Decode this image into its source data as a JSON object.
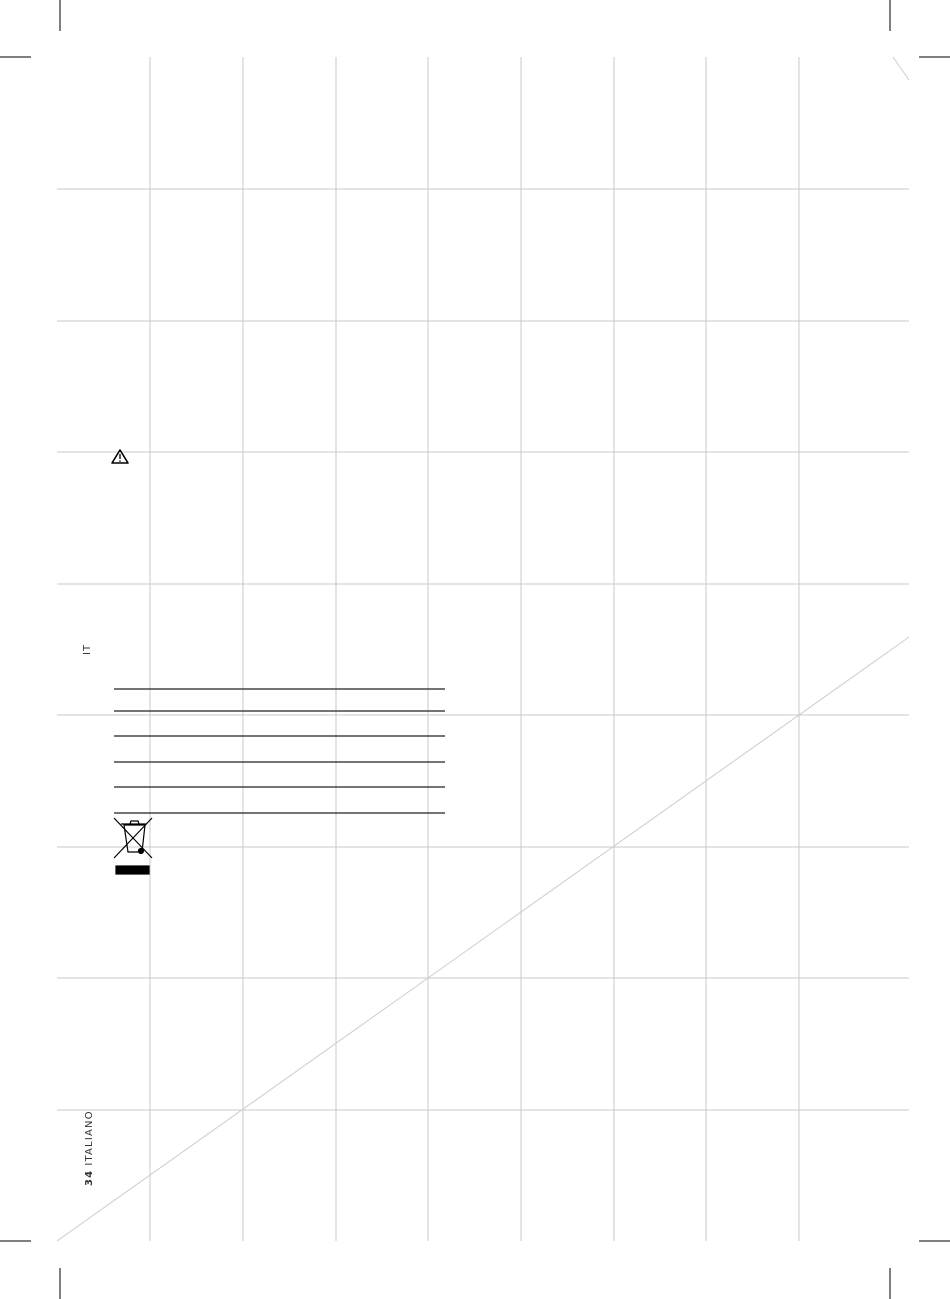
{
  "page": {
    "language_code": "IT",
    "page_number": "34",
    "language_name": "ITALIANO"
  },
  "icons": [
    "warning-triangle-icon",
    "weee-crossed-bin-icon"
  ],
  "colors": {
    "grid": "#c8c8c8",
    "rule": "#222222",
    "marks": "#000000"
  }
}
